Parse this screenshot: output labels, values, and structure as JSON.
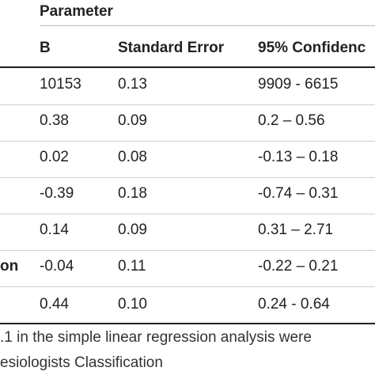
{
  "table": {
    "group_header": "Parameter",
    "columns": [
      "B",
      "Standard Error",
      "95% Confidenc"
    ],
    "rows": [
      {
        "label": "",
        "b": "10153",
        "se": "0.13",
        "ci": "9909 - 6615"
      },
      {
        "label": "",
        "b": "0.38",
        "se": "0.09",
        "ci": "0.2 – 0.56"
      },
      {
        "label": "",
        "b": "0.02",
        "se": "0.08",
        "ci": "-0.13 – 0.18"
      },
      {
        "label": "",
        "b": "-0.39",
        "se": "0.18",
        "ci": "-0.74 – 0.31"
      },
      {
        "label": "",
        "b": "0.14",
        "se": "0.09",
        "ci": "0.31 – 2.71"
      },
      {
        "label": "on",
        "b": "-0.04",
        "se": "0.11",
        "ci": "-0.22 – 0.21"
      },
      {
        "label": "",
        "b": "0.44",
        "se": "0.10",
        "ci": "0.24 - 0.64"
      }
    ]
  },
  "footnote": {
    "line1": ".1 in the simple linear regression analysis were",
    "line2": "esiologists Classification"
  }
}
